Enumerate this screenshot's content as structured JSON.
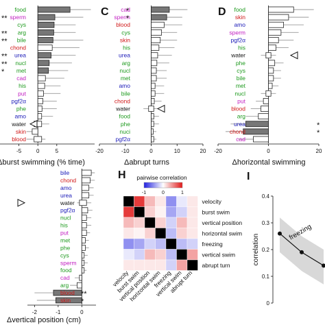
{
  "colors": {
    "green": "#1e9a1e",
    "magenta": "#c21fc2",
    "red": "#d01818",
    "blue": "#1a1ab8",
    "box_filled": "#777777",
    "whisker": "#9a9a9a",
    "heat_neg": "#2020e0",
    "heat_pos": "#e01818"
  },
  "chart_data": [
    {
      "panel": "B",
      "type": "box",
      "title": "",
      "xlabel": "Δburst swimming (% time)",
      "ylabel": "",
      "xlim": [
        -10,
        15
      ],
      "xticks": [
        -5,
        0,
        5
      ],
      "visible_panel_letter": "",
      "categories": [
        {
          "name": "food",
          "color": "green",
          "q1": 0,
          "q3": 8.5,
          "w_lo": 0,
          "w_hi": 14,
          "filled": true,
          "star": ""
        },
        {
          "name": "sperm",
          "color": "magenta",
          "q1": 0,
          "q3": 4.5,
          "w_lo": 0,
          "w_hi": 12,
          "filled": true,
          "star": "**"
        },
        {
          "name": "cys",
          "color": "green",
          "q1": 0,
          "q3": 4.3,
          "w_lo": 0,
          "w_hi": 10,
          "filled": true,
          "star": ""
        },
        {
          "name": "arg",
          "color": "green",
          "q1": 0,
          "q3": 4.2,
          "w_lo": 0,
          "w_hi": 10,
          "filled": true,
          "star": "**"
        },
        {
          "name": "bile",
          "color": "green",
          "q1": 0,
          "q3": 4,
          "w_lo": 0,
          "w_hi": 12,
          "filled": true,
          "star": "**"
        },
        {
          "name": "chond",
          "color": "red",
          "q1": 0,
          "q3": 3.8,
          "w_lo": 0,
          "w_hi": 11,
          "filled": false,
          "star": ""
        },
        {
          "name": "urea",
          "color": "blue",
          "q1": 0,
          "q3": 3.5,
          "w_lo": 0,
          "w_hi": 10,
          "filled": true,
          "star": "**"
        },
        {
          "name": "nucl",
          "color": "green",
          "q1": 0,
          "q3": 3,
          "w_lo": 0,
          "w_hi": 9,
          "filled": true,
          "star": "**"
        },
        {
          "name": "met",
          "color": "green",
          "q1": 0,
          "q3": 2.8,
          "w_lo": 0,
          "w_hi": 8,
          "filled": true,
          "star": "*"
        },
        {
          "name": "cad",
          "color": "magenta",
          "q1": 0,
          "q3": 2,
          "w_lo": 0,
          "w_hi": 7,
          "filled": false,
          "star": ""
        },
        {
          "name": "his",
          "color": "green",
          "q1": 0,
          "q3": 1.8,
          "w_lo": 0,
          "w_hi": 6,
          "filled": false,
          "star": ""
        },
        {
          "name": "put",
          "color": "magenta",
          "q1": 0,
          "q3": 1.5,
          "w_lo": 0,
          "w_hi": 6,
          "filled": false,
          "star": ""
        },
        {
          "name": "pgf2α",
          "color": "blue",
          "q1": 0,
          "q3": 1.3,
          "w_lo": 0,
          "w_hi": 5,
          "filled": false,
          "star": ""
        },
        {
          "name": "phe",
          "color": "green",
          "q1": 0,
          "q3": 1.1,
          "w_lo": 0,
          "w_hi": 5,
          "filled": false,
          "star": ""
        },
        {
          "name": "amo",
          "color": "blue",
          "q1": 0,
          "q3": 1,
          "w_lo": 0,
          "w_hi": 4,
          "filled": false,
          "star": ""
        },
        {
          "name": "water",
          "color": "black",
          "q1": -1,
          "q3": 1,
          "w_lo": -2,
          "w_hi": 3,
          "filled": false,
          "star": "",
          "arrow": true
        },
        {
          "name": "skin",
          "color": "red",
          "q1": -1.5,
          "q3": 0,
          "w_lo": -3,
          "w_hi": 0,
          "filled": false,
          "star": ""
        },
        {
          "name": "blood",
          "color": "red",
          "q1": -1,
          "q3": 1,
          "w_lo": -3,
          "w_hi": 2,
          "filled": false,
          "star": ""
        }
      ]
    },
    {
      "panel": "C",
      "type": "box",
      "title": "",
      "xlabel": "Δabrupt turns",
      "ylabel": "",
      "xlim": [
        -20,
        20
      ],
      "xticks": [
        -20,
        -10,
        0,
        10,
        20
      ],
      "visible_panel_letter": "C",
      "categories": [
        {
          "name": "cad",
          "color": "magenta",
          "q1": 0,
          "q3": 7,
          "w_lo": 0,
          "w_hi": 14,
          "filled": true,
          "star": "*"
        },
        {
          "name": "sperm",
          "color": "magenta",
          "q1": 0,
          "q3": 6,
          "w_lo": 0,
          "w_hi": 12,
          "filled": true,
          "star": "*"
        },
        {
          "name": "blood",
          "color": "red",
          "q1": 0,
          "q3": 5,
          "w_lo": 0,
          "w_hi": 12,
          "filled": false,
          "star": ""
        },
        {
          "name": "cys",
          "color": "green",
          "q1": 0,
          "q3": 4,
          "w_lo": 0,
          "w_hi": 10,
          "filled": false,
          "star": ""
        },
        {
          "name": "skin",
          "color": "red",
          "q1": 0,
          "q3": 3.5,
          "w_lo": 0,
          "w_hi": 10,
          "filled": false,
          "star": ""
        },
        {
          "name": "his",
          "color": "green",
          "q1": 0,
          "q3": 3,
          "w_lo": 0,
          "w_hi": 9,
          "filled": false,
          "star": ""
        },
        {
          "name": "urea",
          "color": "blue",
          "q1": 0,
          "q3": 2.5,
          "w_lo": 0,
          "w_hi": 8,
          "filled": false,
          "star": ""
        },
        {
          "name": "arg",
          "color": "green",
          "q1": 0,
          "q3": 2.2,
          "w_lo": 0,
          "w_hi": 7,
          "filled": false,
          "star": ""
        },
        {
          "name": "nucl",
          "color": "green",
          "q1": 0,
          "q3": 2,
          "w_lo": 0,
          "w_hi": 6,
          "filled": false,
          "star": ""
        },
        {
          "name": "met",
          "color": "green",
          "q1": 0,
          "q3": 2,
          "w_lo": 0,
          "w_hi": 6,
          "filled": false,
          "star": ""
        },
        {
          "name": "amo",
          "color": "blue",
          "q1": 0,
          "q3": 1.5,
          "w_lo": 0,
          "w_hi": 5,
          "filled": false,
          "star": ""
        },
        {
          "name": "bile",
          "color": "green",
          "q1": 0,
          "q3": 1.5,
          "w_lo": 0,
          "w_hi": 5,
          "filled": false,
          "star": ""
        },
        {
          "name": "chond",
          "color": "red",
          "q1": 0,
          "q3": 1.2,
          "w_lo": 0,
          "w_hi": 4,
          "filled": false,
          "star": ""
        },
        {
          "name": "water",
          "color": "black",
          "q1": -1,
          "q3": 1,
          "w_lo": -3,
          "w_hi": 3,
          "filled": false,
          "star": "",
          "arrow": true
        },
        {
          "name": "food",
          "color": "green",
          "q1": 0,
          "q3": 1,
          "w_lo": 0,
          "w_hi": 3,
          "filled": false,
          "star": ""
        },
        {
          "name": "phe",
          "color": "green",
          "q1": 0,
          "q3": 1,
          "w_lo": 0,
          "w_hi": 3,
          "filled": false,
          "star": ""
        },
        {
          "name": "nuci",
          "color": "green",
          "q1": 0,
          "q3": 0.8,
          "w_lo": 0,
          "w_hi": 2,
          "filled": false,
          "star": ""
        },
        {
          "name": "pgf2α",
          "color": "blue",
          "q1": 0,
          "q3": 1,
          "w_lo": 0,
          "w_hi": 2,
          "filled": false,
          "star": ""
        }
      ]
    },
    {
      "panel": "D",
      "type": "box",
      "title": "",
      "xlabel": "Δhorizontal swimming",
      "ylabel": "",
      "xlim": [
        -20,
        20
      ],
      "xticks": [
        -20,
        0,
        20
      ],
      "visible_panel_letter": "D",
      "categories": [
        {
          "name": "food",
          "color": "green",
          "q1": 0,
          "q3": 10,
          "w_lo": 0,
          "w_hi": 18,
          "filled": false,
          "star": ""
        },
        {
          "name": "skin",
          "color": "red",
          "q1": 0,
          "q3": 8,
          "w_lo": 0,
          "w_hi": 16,
          "filled": false,
          "star": ""
        },
        {
          "name": "amo",
          "color": "blue",
          "q1": 0,
          "q3": 6,
          "w_lo": 0,
          "w_hi": 14,
          "filled": false,
          "star": ""
        },
        {
          "name": "sperm",
          "color": "magenta",
          "q1": 0,
          "q3": 5,
          "w_lo": 0,
          "w_hi": 12,
          "filled": false,
          "star": ""
        },
        {
          "name": "pgf2α",
          "color": "blue",
          "q1": 0,
          "q3": 4,
          "w_lo": 0,
          "w_hi": 10,
          "filled": false,
          "star": ""
        },
        {
          "name": "his",
          "color": "green",
          "q1": 0,
          "q3": 3,
          "w_lo": 0,
          "w_hi": 8,
          "filled": false,
          "star": ""
        },
        {
          "name": "water",
          "color": "black",
          "q1": -1,
          "q3": 1,
          "w_lo": -3,
          "w_hi": 3,
          "filled": false,
          "star": "",
          "arrow": true
        },
        {
          "name": "phe",
          "color": "green",
          "q1": 0,
          "q3": 2.5,
          "w_lo": 0,
          "w_hi": 6,
          "filled": false,
          "star": ""
        },
        {
          "name": "cys",
          "color": "green",
          "q1": 0,
          "q3": 2,
          "w_lo": 0,
          "w_hi": 5,
          "filled": false,
          "star": ""
        },
        {
          "name": "bile",
          "color": "green",
          "q1": 0,
          "q3": 2,
          "w_lo": 0,
          "w_hi": 5,
          "filled": false,
          "star": ""
        },
        {
          "name": "met",
          "color": "green",
          "q1": 0,
          "q3": 1.5,
          "w_lo": 0,
          "w_hi": 4,
          "filled": false,
          "star": ""
        },
        {
          "name": "nucl",
          "color": "green",
          "q1": -1,
          "q3": 1,
          "w_lo": -3,
          "w_hi": 3,
          "filled": false,
          "star": ""
        },
        {
          "name": "put",
          "color": "magenta",
          "q1": -2,
          "q3": 0,
          "w_lo": -5,
          "w_hi": 0,
          "filled": false,
          "star": ""
        },
        {
          "name": "blood",
          "color": "red",
          "q1": -3,
          "q3": 0,
          "w_lo": -7,
          "w_hi": 0,
          "filled": false,
          "star": ""
        },
        {
          "name": "arg",
          "color": "green",
          "q1": -4,
          "q3": 0,
          "w_lo": -9,
          "w_hi": 0,
          "filled": false,
          "star": ""
        },
        {
          "name": "urea",
          "color": "blue",
          "q1": -9,
          "q3": 0,
          "w_lo": -15,
          "w_hi": 0,
          "filled": true,
          "star": "*"
        },
        {
          "name": "chond",
          "color": "red",
          "q1": -10,
          "q3": 0,
          "w_lo": -17,
          "w_hi": 0,
          "filled": true,
          "star": "*"
        },
        {
          "name": "cad",
          "color": "magenta",
          "q1": -6,
          "q3": 0,
          "w_lo": -12,
          "w_hi": 0,
          "filled": false,
          "star": ""
        }
      ]
    },
    {
      "panel": "G",
      "type": "box",
      "title": "",
      "xlabel": "Δvertical position (cm)",
      "ylabel": "",
      "xlim": [
        -2.3,
        0.6
      ],
      "xticks": [
        -2,
        -1,
        0
      ],
      "visible_panel_letter": "",
      "categories": [
        {
          "name": "bile",
          "color": "blue",
          "q1": 0,
          "q3": 0.4,
          "w_lo": 0,
          "w_hi": 0.55,
          "filled": false,
          "star": ""
        },
        {
          "name": "chond",
          "color": "red",
          "q1": 0,
          "q3": 0.35,
          "w_lo": 0,
          "w_hi": 0.55,
          "filled": false,
          "star": ""
        },
        {
          "name": "amo",
          "color": "blue",
          "q1": 0,
          "q3": 0.3,
          "w_lo": 0,
          "w_hi": 0.5,
          "filled": false,
          "star": ""
        },
        {
          "name": "urea",
          "color": "blue",
          "q1": 0,
          "q3": 0.3,
          "w_lo": 0,
          "w_hi": 0.5,
          "filled": false,
          "star": ""
        },
        {
          "name": "water",
          "color": "black",
          "q1": -0.1,
          "q3": 0.2,
          "w_lo": -0.2,
          "w_hi": 0.4,
          "filled": false,
          "star": "",
          "arrow": true
        },
        {
          "name": "pgf2α",
          "color": "blue",
          "q1": 0,
          "q3": 0.25,
          "w_lo": 0,
          "w_hi": 0.45,
          "filled": false,
          "star": ""
        },
        {
          "name": "nucl",
          "color": "green",
          "q1": 0,
          "q3": 0.2,
          "w_lo": 0,
          "w_hi": 0.4,
          "filled": false,
          "star": ""
        },
        {
          "name": "his",
          "color": "green",
          "q1": 0,
          "q3": 0.2,
          "w_lo": 0,
          "w_hi": 0.4,
          "filled": false,
          "star": ""
        },
        {
          "name": "put",
          "color": "magenta",
          "q1": 0,
          "q3": 0.2,
          "w_lo": 0,
          "w_hi": 0.35,
          "filled": false,
          "star": ""
        },
        {
          "name": "met",
          "color": "green",
          "q1": 0,
          "q3": 0.15,
          "w_lo": 0,
          "w_hi": 0.3,
          "filled": false,
          "star": ""
        },
        {
          "name": "phe",
          "color": "green",
          "q1": 0,
          "q3": 0.15,
          "w_lo": 0,
          "w_hi": 0.3,
          "filled": false,
          "star": ""
        },
        {
          "name": "cys",
          "color": "green",
          "q1": 0,
          "q3": 0.1,
          "w_lo": 0,
          "w_hi": 0.25,
          "filled": false,
          "star": ""
        },
        {
          "name": "sperm",
          "color": "magenta",
          "q1": 0,
          "q3": 0.1,
          "w_lo": 0,
          "w_hi": 0.25,
          "filled": false,
          "star": ""
        },
        {
          "name": "food",
          "color": "green",
          "q1": 0,
          "q3": 0.1,
          "w_lo": 0,
          "w_hi": 0.2,
          "filled": false,
          "star": ""
        },
        {
          "name": "cad",
          "color": "magenta",
          "q1": -0.1,
          "q3": 0,
          "w_lo": -0.3,
          "w_hi": 0,
          "filled": false,
          "star": ""
        },
        {
          "name": "arg",
          "color": "green",
          "q1": -0.2,
          "q3": 0,
          "w_lo": -0.5,
          "w_hi": 0,
          "filled": false,
          "star": ""
        },
        {
          "name": "blood",
          "color": "red",
          "q1": -1.2,
          "q3": 0,
          "w_lo": -2,
          "w_hi": 0,
          "filled": true,
          "star": "**"
        },
        {
          "name": "skin",
          "color": "red",
          "q1": -1.1,
          "q3": 0,
          "w_lo": -1.9,
          "w_hi": 0,
          "filled": true,
          "star": "*"
        }
      ]
    },
    {
      "panel": "H",
      "type": "heatmap",
      "title": "pairwise correlation",
      "visible_panel_letter": "H",
      "colorbar_ticks": [
        "-1",
        "0",
        "1"
      ],
      "labels": [
        "velocity",
        "burst swim",
        "vertical position",
        "horizontal swim",
        "freezing",
        "vertical swim",
        "abrupt turn"
      ],
      "matrix": [
        [
          1,
          0.85,
          0.3,
          0.1,
          -0.5,
          -0.1,
          0.1
        ],
        [
          0.85,
          1,
          0.2,
          0.05,
          -0.4,
          -0.2,
          0.1
        ],
        [
          0.3,
          0.2,
          1,
          0.2,
          -0.2,
          0.3,
          0.1
        ],
        [
          0.1,
          0.05,
          0.2,
          1,
          -0.3,
          0.2,
          0.1
        ],
        [
          -0.5,
          -0.4,
          -0.2,
          -0.3,
          1,
          -0.3,
          -0.2
        ],
        [
          -0.1,
          -0.2,
          0.3,
          0.2,
          -0.3,
          1,
          0.4
        ],
        [
          0.1,
          0.1,
          0.1,
          0.1,
          -0.2,
          0.4,
          1
        ]
      ]
    },
    {
      "panel": "I",
      "type": "line",
      "title": "",
      "visible_panel_letter": "I",
      "xlabel": "",
      "ylabel": "correlation",
      "ylim": [
        0,
        0.4
      ],
      "yticks": [
        0,
        0.1,
        0.2,
        0.3,
        0.4
      ],
      "series_label": "freezing",
      "x": [
        0,
        1,
        2
      ],
      "y": [
        0.26,
        0.19,
        0.14
      ]
    }
  ]
}
